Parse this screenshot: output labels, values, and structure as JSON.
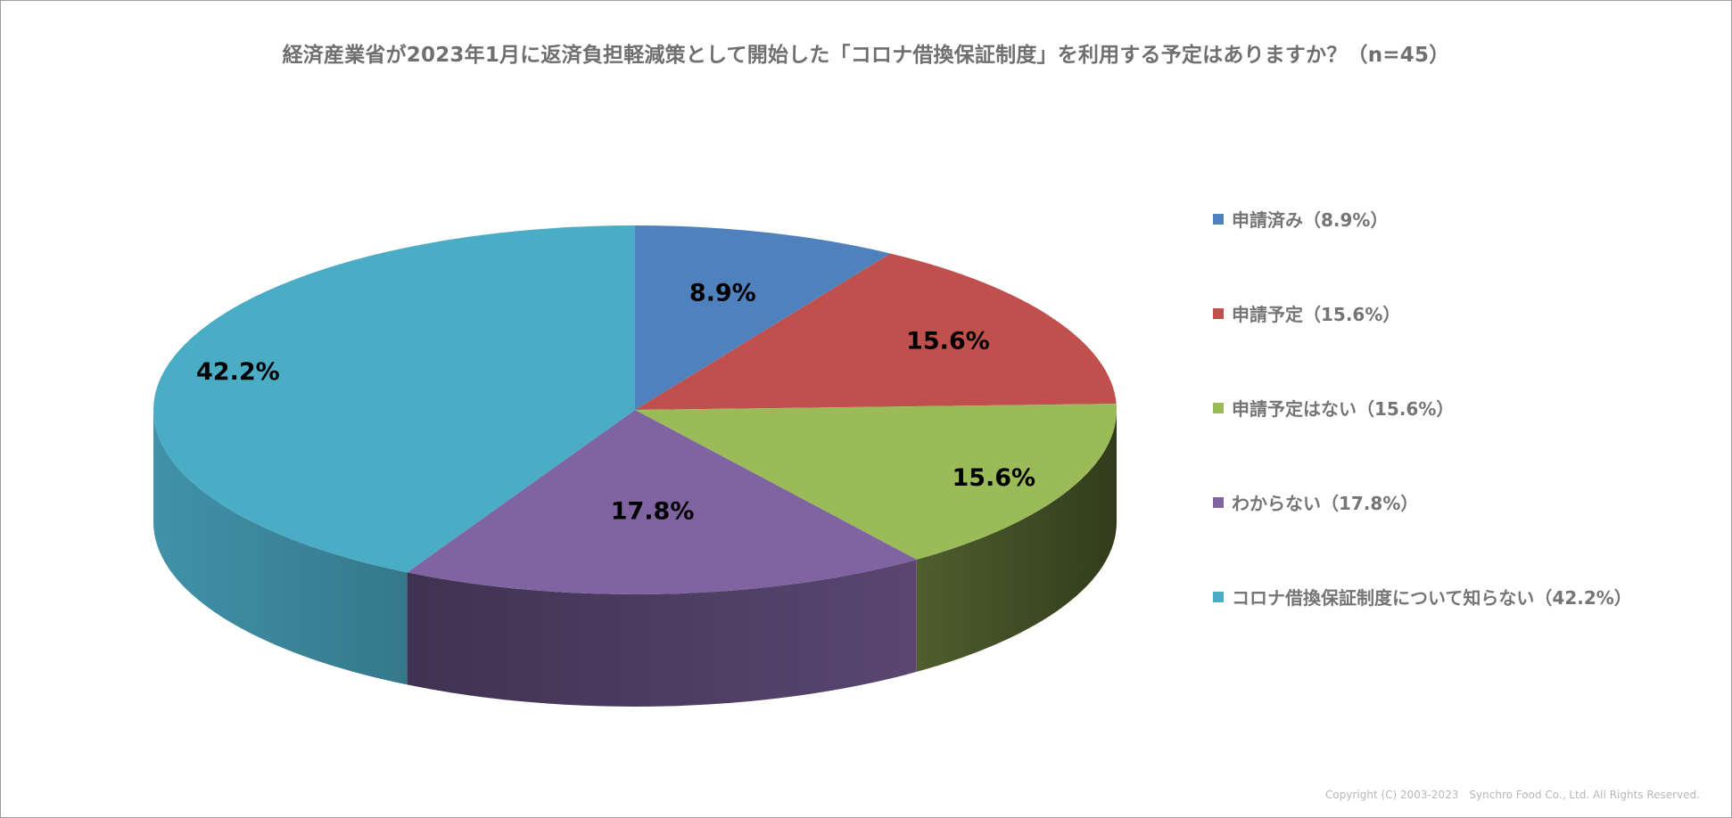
{
  "chart_data": {
    "type": "pie",
    "title": "経済産業省が2023年1月に返済負担軽減策として開始した「コロナ借換保証制度」を利用する予定はありますか？（n=45）",
    "slices": [
      {
        "label": "申請済み（8.9%）",
        "value": 8.9,
        "data_label": "8.9%",
        "color": "#4f81bd"
      },
      {
        "label": "申請予定（15.6%）",
        "value": 15.6,
        "data_label": "15.6%",
        "color": "#c0504d"
      },
      {
        "label": "申請予定はない（15.6%）",
        "value": 15.6,
        "data_label": "15.6%",
        "color": "#9bbb59"
      },
      {
        "label": "わからない（17.8%）",
        "value": 17.8,
        "data_label": "17.8%",
        "color": "#8064a2"
      },
      {
        "label": "コロナ借換保証制度について知らない（42.2%）",
        "value": 42.2,
        "data_label": "42.2%",
        "color": "#4bacc6"
      }
    ],
    "legend_position": "right",
    "style": "3d-pie"
  },
  "footer": {
    "copyright": "Copyright (C) 2003-2023　Synchro Food Co., Ltd. All Rights Reserved."
  }
}
